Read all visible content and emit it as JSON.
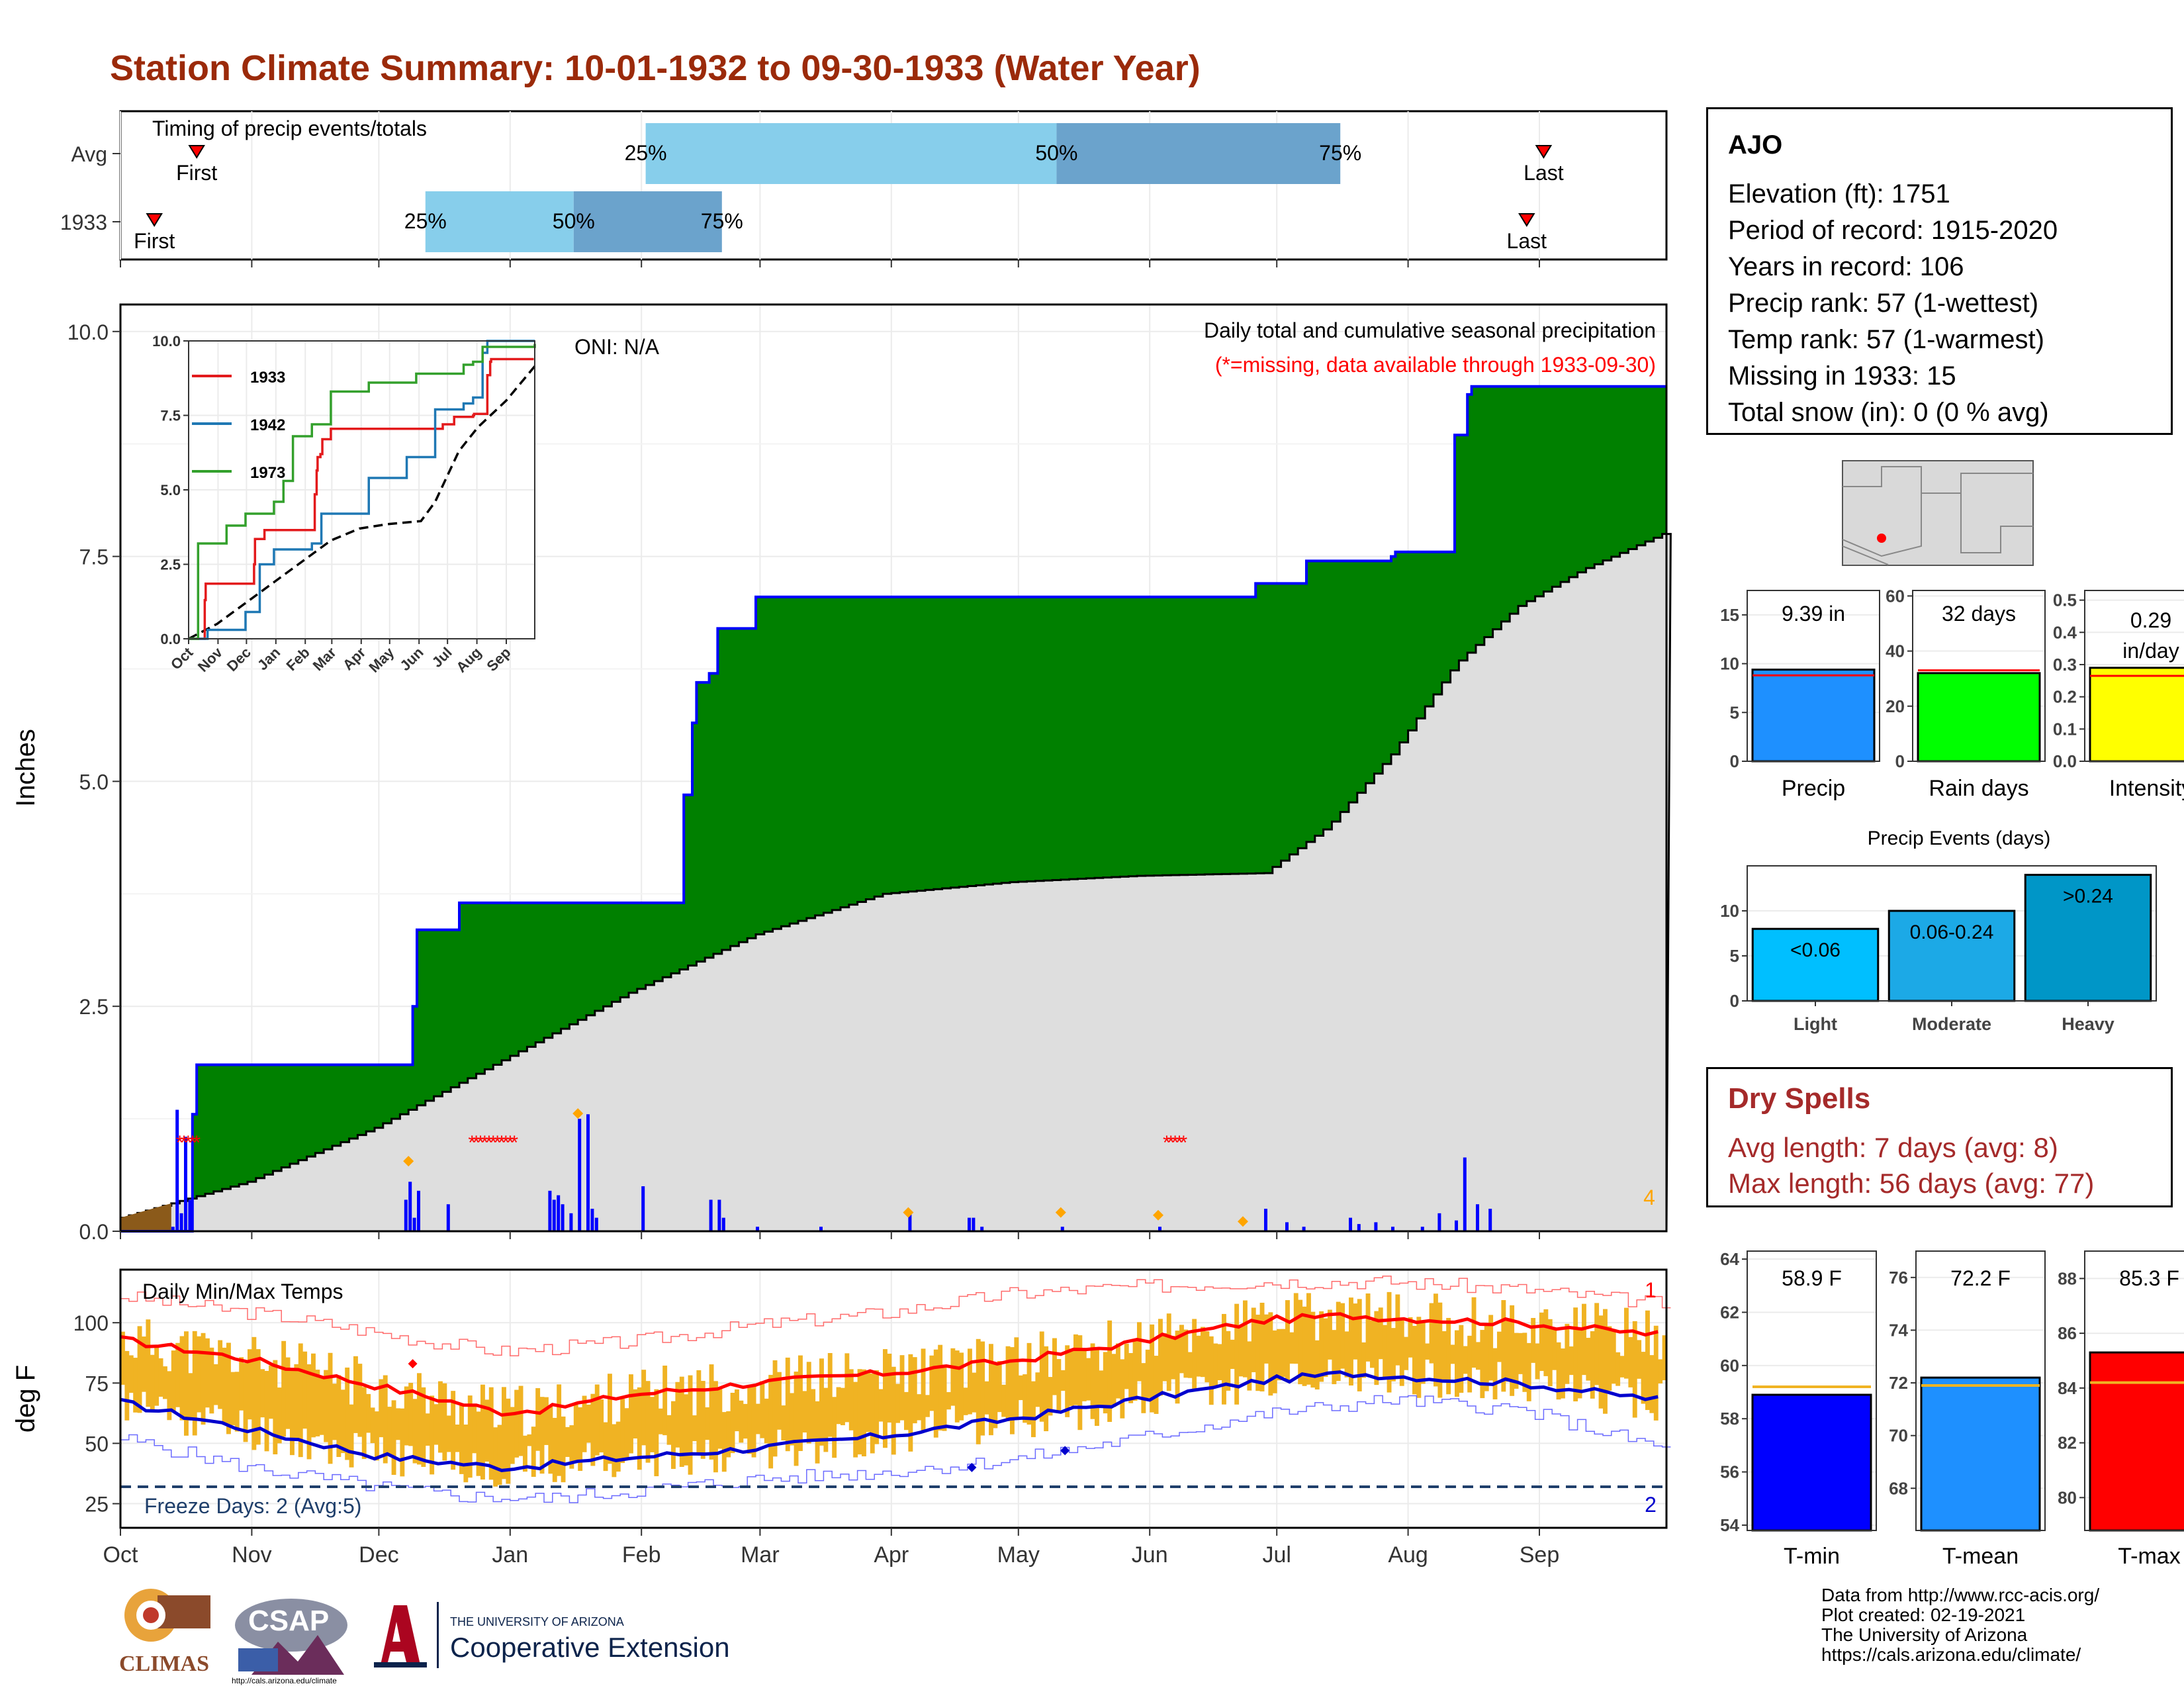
{
  "title": "Station Climate Summary: 10-01-1932 to 09-30-1933 (Water Year)",
  "colors": {
    "title": "#9b2a0a",
    "precip_green": "#008000",
    "cum_avg_gray": "#dedede",
    "bar_blue": "#0000ff",
    "temp_band": "#f0b323",
    "tmax_line": "#ff0000",
    "tmin_line": "#0000cd",
    "q_light": "#87ceeb",
    "q_dark": "#6ba3cc"
  },
  "timing": {
    "title": "Timing of precip events/totals",
    "rows": [
      {
        "label": "Avg",
        "first_doy": 18,
        "q25_doy": 124,
        "q50_doy": 221,
        "q75_doy": 288,
        "last_doy": 336,
        "first_label": "First",
        "last_label": "Last",
        "q25_label": "25%",
        "q50_label": "50%",
        "q75_label": "75%"
      },
      {
        "label": "1933",
        "first_doy": 8,
        "q25_doy": 72,
        "q50_doy": 107,
        "q75_doy": 142,
        "last_doy": 332,
        "first_label": "First",
        "last_label": "Last",
        "q25_label": "25%",
        "q50_label": "50%",
        "q75_label": "75%"
      }
    ]
  },
  "months": [
    "Oct",
    "Nov",
    "Dec",
    "Jan",
    "Feb",
    "Mar",
    "Apr",
    "May",
    "Jun",
    "Jul",
    "Aug",
    "Sep"
  ],
  "month_start_doy": [
    0,
    31,
    61,
    92,
    123,
    151,
    182,
    212,
    243,
    273,
    304,
    335
  ],
  "precip_panel": {
    "ylabel": "Inches",
    "yticks": [
      "0.0",
      "2.5",
      "5.0",
      "7.5",
      "10.0"
    ],
    "ylim": [
      0,
      10.3
    ],
    "oni": "ONI: N/A",
    "caption": "Daily total and cumulative seasonal precipitation",
    "missing_note": "(*=missing, data available through 1933-09-30)",
    "corner_count": "4"
  },
  "inset": {
    "yticks": [
      "0.0",
      "2.5",
      "5.0",
      "7.5",
      "10.0"
    ],
    "xticks": [
      "Oct",
      "Nov",
      "Dec",
      "Jan",
      "Feb",
      "Mar",
      "Apr",
      "May",
      "Jun",
      "Jul",
      "Aug",
      "Sep"
    ],
    "legend": [
      {
        "name": "1933",
        "color": "#e31a1c"
      },
      {
        "name": "1942",
        "color": "#1f78b4"
      },
      {
        "name": "1973",
        "color": "#33a02c"
      }
    ]
  },
  "temp_panel": {
    "title": "Daily Min/Max Temps",
    "ylabel": "deg F",
    "yticks": [
      "25",
      "50",
      "75",
      "100"
    ],
    "freeze_label": "Freeze Days: 2 (Avg:5)",
    "top_count": "1",
    "bottom_count": "2"
  },
  "station": {
    "name": "AJO",
    "lines": [
      "Elevation (ft): 1751",
      "Period of record: 1915-2020",
      "Years in record: 106",
      "Precip rank: 57 (1-wettest)",
      "Temp rank: 57 (1-warmest)",
      "Missing in 1933: 15",
      "Total snow (in): 0 (0 % avg)"
    ]
  },
  "summary_bars": [
    {
      "label": "Precip",
      "value_label": "9.39 in",
      "value": 9.39,
      "avg": 8.8,
      "ymax": 17.5,
      "ticks": [
        "0",
        "5",
        "10",
        "15"
      ],
      "tick_vals": [
        0,
        5,
        10,
        15
      ],
      "color": "#1e90ff"
    },
    {
      "label": "Rain days",
      "value_label": "32 days",
      "value": 32,
      "avg": 33,
      "ymax": 62,
      "ticks": [
        "0",
        "20",
        "40",
        "60"
      ],
      "tick_vals": [
        0,
        20,
        40,
        60
      ],
      "color": "#00ff00"
    },
    {
      "label": "Intensity",
      "value_label": "0.29\nin/day",
      "value": 0.29,
      "avg": 0.265,
      "ymax": 0.53,
      "ticks": [
        "0.0",
        "0.1",
        "0.2",
        "0.3",
        "0.4",
        "0.5"
      ],
      "tick_vals": [
        0,
        0.1,
        0.2,
        0.3,
        0.4,
        0.5
      ],
      "color": "#ffff00"
    }
  ],
  "precip_events": {
    "title": "Precip Events (days)",
    "ticks": [
      "0",
      "5",
      "10"
    ],
    "bars": [
      {
        "label": "Light",
        "range_label": "<0.06",
        "value": 8,
        "color": "#00bfff"
      },
      {
        "label": "Moderate",
        "range_label": "0.06-0.24",
        "value": 10,
        "color": "#1ca9e6"
      },
      {
        "label": "Heavy",
        "range_label": ">0.24",
        "value": 14,
        "color": "#0096c7"
      }
    ]
  },
  "dry_spells": {
    "title": "Dry Spells",
    "avg_line": "Avg length: 7 days (avg: 8)",
    "max_line": "Max length: 56 days (avg: 77)"
  },
  "temp_bars": [
    {
      "label": "T-min",
      "value_label": "58.9 F",
      "value": 58.9,
      "avg": 59.2,
      "ymin": 53.8,
      "ymax": 64.3,
      "ticks": [
        "54",
        "56",
        "58",
        "60",
        "62",
        "64"
      ],
      "tick_vals": [
        54,
        56,
        58,
        60,
        62,
        64
      ],
      "color": "#0000ff"
    },
    {
      "label": "T-mean",
      "value_label": "72.2 F",
      "value": 72.2,
      "avg": 71.9,
      "ymin": 66.4,
      "ymax": 77.0,
      "ticks": [
        "68",
        "70",
        "72",
        "74",
        "76"
      ],
      "tick_vals": [
        68,
        70,
        72,
        74,
        76
      ],
      "color": "#1e90ff"
    },
    {
      "label": "T-max",
      "value_label": "85.3 F",
      "value": 85.3,
      "avg": 84.2,
      "ymin": 78.8,
      "ymax": 89.0,
      "ticks": [
        "80",
        "82",
        "84",
        "86",
        "88"
      ],
      "tick_vals": [
        80,
        82,
        84,
        86,
        88
      ],
      "color": "#ff0000"
    }
  ],
  "credits": [
    "Data from http://www.rcc-acis.org/",
    "Plot created: 02-19-2021",
    "The University of Arizona",
    "https://cals.arizona.edu/climate/"
  ],
  "logos": {
    "climas": "CLIMAS",
    "csap": "CSAP",
    "csap_url": "http://cals.arizona.edu/climate",
    "ua_small": "THE UNIVERSITY OF ARIZONA",
    "ua_big": "Cooperative Extension"
  },
  "chart_data": [
    {
      "type": "area",
      "title": "Daily total and cumulative seasonal precipitation",
      "ylabel": "Inches",
      "ylim": [
        0,
        10.3
      ],
      "series": [
        {
          "name": "",
          "kind": "cumulative observed (step)",
          "x_doy": [
            0,
            12,
            17,
            18,
            19,
            67,
            69,
            70,
            80,
            130,
            133,
            135,
            136,
            139,
            141,
            150,
            165,
            240,
            268,
            280,
            300,
            301,
            315,
            318,
            319,
            335,
            337,
            364
          ],
          "values": [
            0.0,
            0.0,
            1.3,
            1.85,
            1.85,
            1.85,
            2.5,
            3.35,
            3.65,
            3.65,
            4.85,
            5.65,
            6.1,
            6.2,
            6.7,
            7.05,
            7.05,
            7.05,
            7.2,
            7.45,
            7.5,
            7.55,
            8.85,
            9.3,
            9.39,
            9.39,
            9.39,
            9.39
          ]
        },
        {
          "name": "",
          "kind": "cumulative average",
          "x_doy": [
            0,
            30,
            60,
            90,
            120,
            150,
            180,
            210,
            240,
            270,
            285,
            300,
            315,
            330,
            345,
            364
          ],
          "values": [
            0.15,
            0.55,
            1.15,
            1.9,
            2.65,
            3.3,
            3.75,
            3.88,
            3.95,
            3.98,
            4.5,
            5.3,
            6.3,
            6.95,
            7.35,
            7.75
          ]
        }
      ],
      "daily_bars": {
        "x_doy": [
          12,
          13,
          14,
          15,
          16,
          67,
          68,
          69,
          70,
          77,
          101,
          102,
          103,
          104,
          106,
          108,
          110,
          111,
          112,
          123,
          139,
          141,
          142,
          150,
          165,
          186,
          200,
          201,
          203,
          222,
          245,
          270,
          275,
          279,
          290,
          292,
          296,
          300,
          307,
          311,
          315,
          317,
          320,
          323
        ],
        "values": [
          0.05,
          1.35,
          0.2,
          1.05,
          0.35,
          0.35,
          0.55,
          0.15,
          0.45,
          0.3,
          0.45,
          0.35,
          0.4,
          0.3,
          0.2,
          1.25,
          1.3,
          0.25,
          0.15,
          0.5,
          0.35,
          0.35,
          0.15,
          0.05,
          0.05,
          0.2,
          0.15,
          0.15,
          0.05,
          0.05,
          0.05,
          0.25,
          0.1,
          0.05,
          0.15,
          0.08,
          0.1,
          0.05,
          0.05,
          0.2,
          0.12,
          0.82,
          0.3,
          0.25
        ]
      }
    },
    {
      "type": "line",
      "title": "Daily Min/Max Temps",
      "ylabel": "deg F",
      "ylim": [
        15,
        122
      ],
      "series": [
        {
          "name": "",
          "kind": "avg max",
          "x_doy": [
            0,
            30,
            60,
            90,
            100,
            120,
            150,
            180,
            210,
            240,
            270,
            290,
            300,
            330,
            364
          ],
          "values": [
            93,
            85,
            74,
            63,
            64,
            70,
            75,
            79,
            84,
            92,
            101,
            103,
            102,
            100,
            95
          ]
        },
        {
          "name": "",
          "kind": "avg min",
          "x_doy": [
            0,
            30,
            60,
            90,
            100,
            120,
            150,
            180,
            210,
            240,
            270,
            290,
            300,
            330,
            364
          ],
          "values": [
            67,
            56,
            45,
            40,
            41,
            44,
            48,
            53,
            60,
            68,
            76,
            79,
            78,
            75,
            68
          ]
        },
        {
          "name": "",
          "kind": "record high",
          "x_doy": [
            0,
            40,
            70,
            90,
            120,
            150,
            180,
            210,
            240,
            270,
            300,
            330,
            364
          ],
          "values": [
            111,
            102,
            93,
            88,
            92,
            99,
            104,
            112,
            115,
            117,
            117,
            114,
            108
          ]
        },
        {
          "name": "",
          "kind": "record low",
          "x_doy": [
            0,
            30,
            60,
            80,
            100,
            120,
            150,
            180,
            210,
            240,
            270,
            300,
            330,
            364
          ],
          "values": [
            52,
            40,
            32,
            28,
            27,
            30,
            35,
            38,
            43,
            52,
            62,
            68,
            64,
            48
          ]
        }
      ],
      "freeze_line": 32
    }
  ]
}
